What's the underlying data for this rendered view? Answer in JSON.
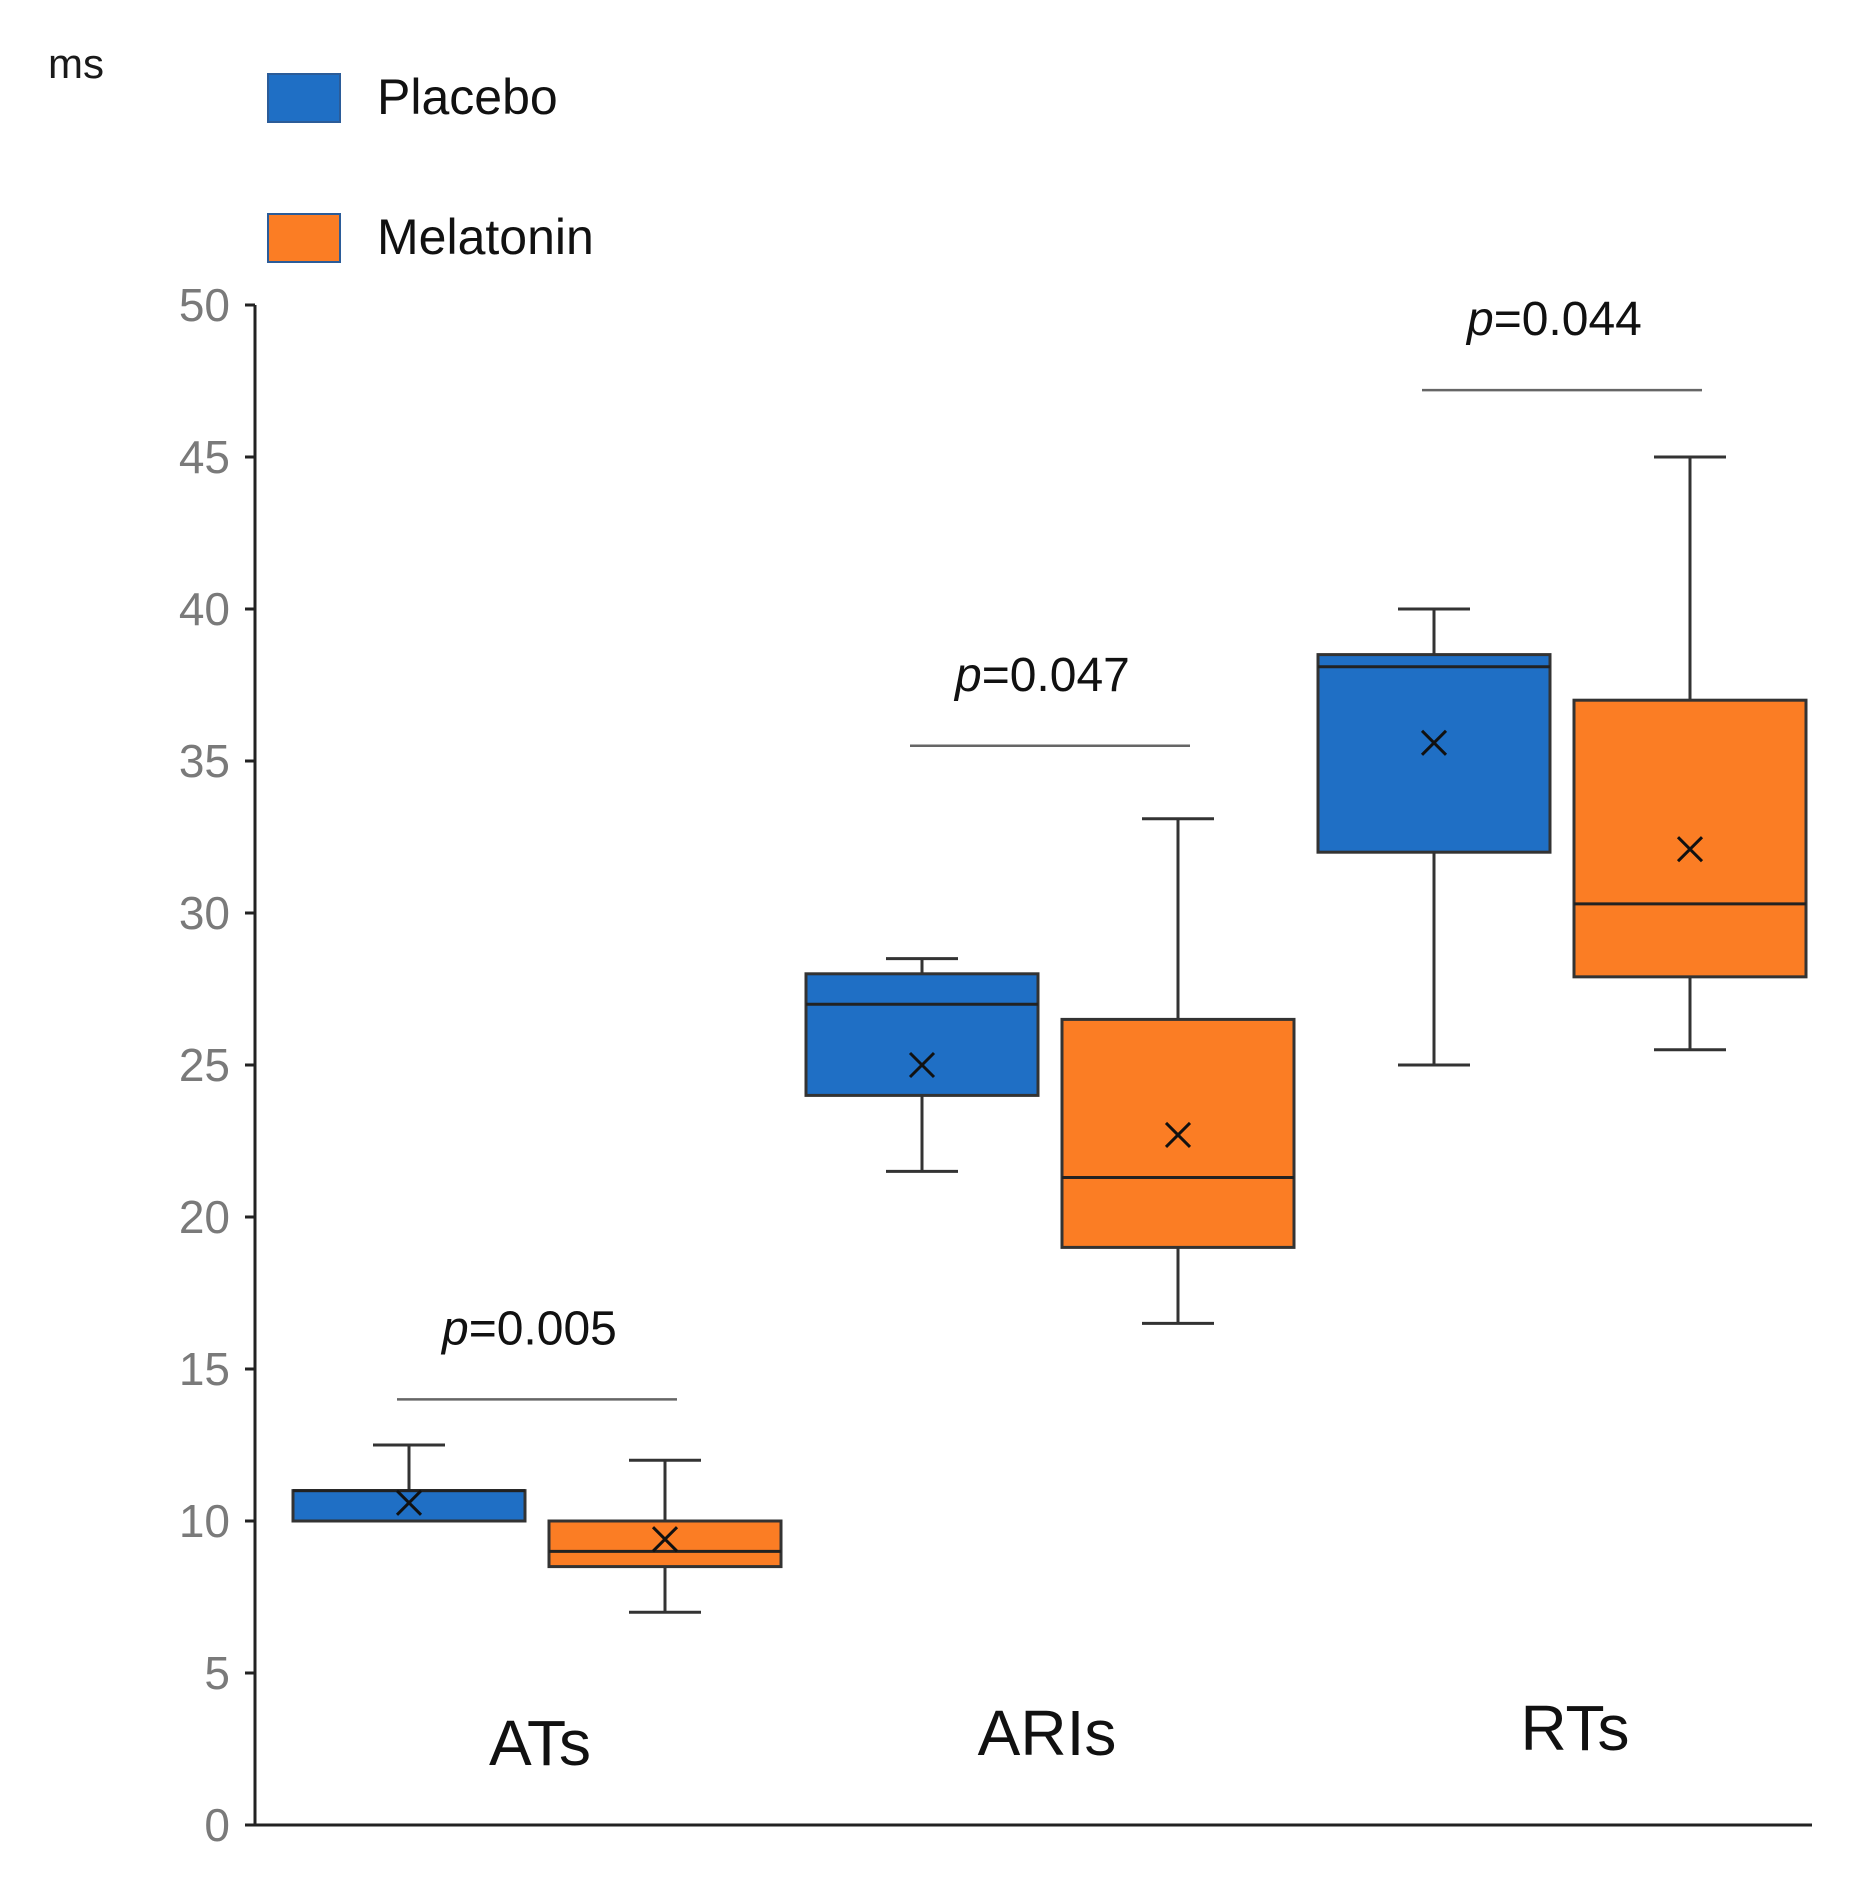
{
  "chart_data": {
    "type": "box",
    "unit_label": "ms",
    "y_range": [
      0,
      50
    ],
    "y_ticks": [
      "0",
      "5",
      "10",
      "15",
      "20",
      "25",
      "30",
      "35",
      "40",
      "45",
      "50"
    ],
    "categories": [
      "ATs",
      "ARIs",
      "RTs"
    ],
    "series": [
      {
        "name": "Placebo",
        "color": "#1f6fc5",
        "boxes": [
          {
            "min": 10,
            "q1": 10,
            "median": 11,
            "q3": 11,
            "max": 12.5,
            "mean": 10.6
          },
          {
            "min": 21.5,
            "q1": 24,
            "median": 27,
            "q3": 28,
            "max": 28.5,
            "mean": 25
          },
          {
            "min": 25,
            "q1": 32,
            "median": 38.1,
            "q3": 38.5,
            "max": 40,
            "mean": 35.6
          }
        ]
      },
      {
        "name": "Melatonin",
        "color": "#fb7d24",
        "boxes": [
          {
            "min": 7,
            "q1": 8.5,
            "median": 9,
            "q3": 10,
            "max": 12,
            "mean": 9.4
          },
          {
            "min": 16.5,
            "q1": 19,
            "median": 21.3,
            "q3": 26.5,
            "max": 33.1,
            "mean": 22.7
          },
          {
            "min": 25.5,
            "q1": 27.9,
            "median": 30.3,
            "q3": 37,
            "max": 45,
            "mean": 32.1
          }
        ]
      }
    ],
    "comparisons": [
      {
        "category": "ATs",
        "p_prefix": "p",
        "p_value": "=0.005",
        "bar_y": 14
      },
      {
        "category": "ARIs",
        "p_prefix": "p",
        "p_value": "=0.047",
        "bar_y": 35.5
      },
      {
        "category": "RTs",
        "p_prefix": "p",
        "p_value": "=0.044",
        "bar_y": 47.2
      }
    ],
    "legend_position": "top-left",
    "mean_marker": "×"
  }
}
